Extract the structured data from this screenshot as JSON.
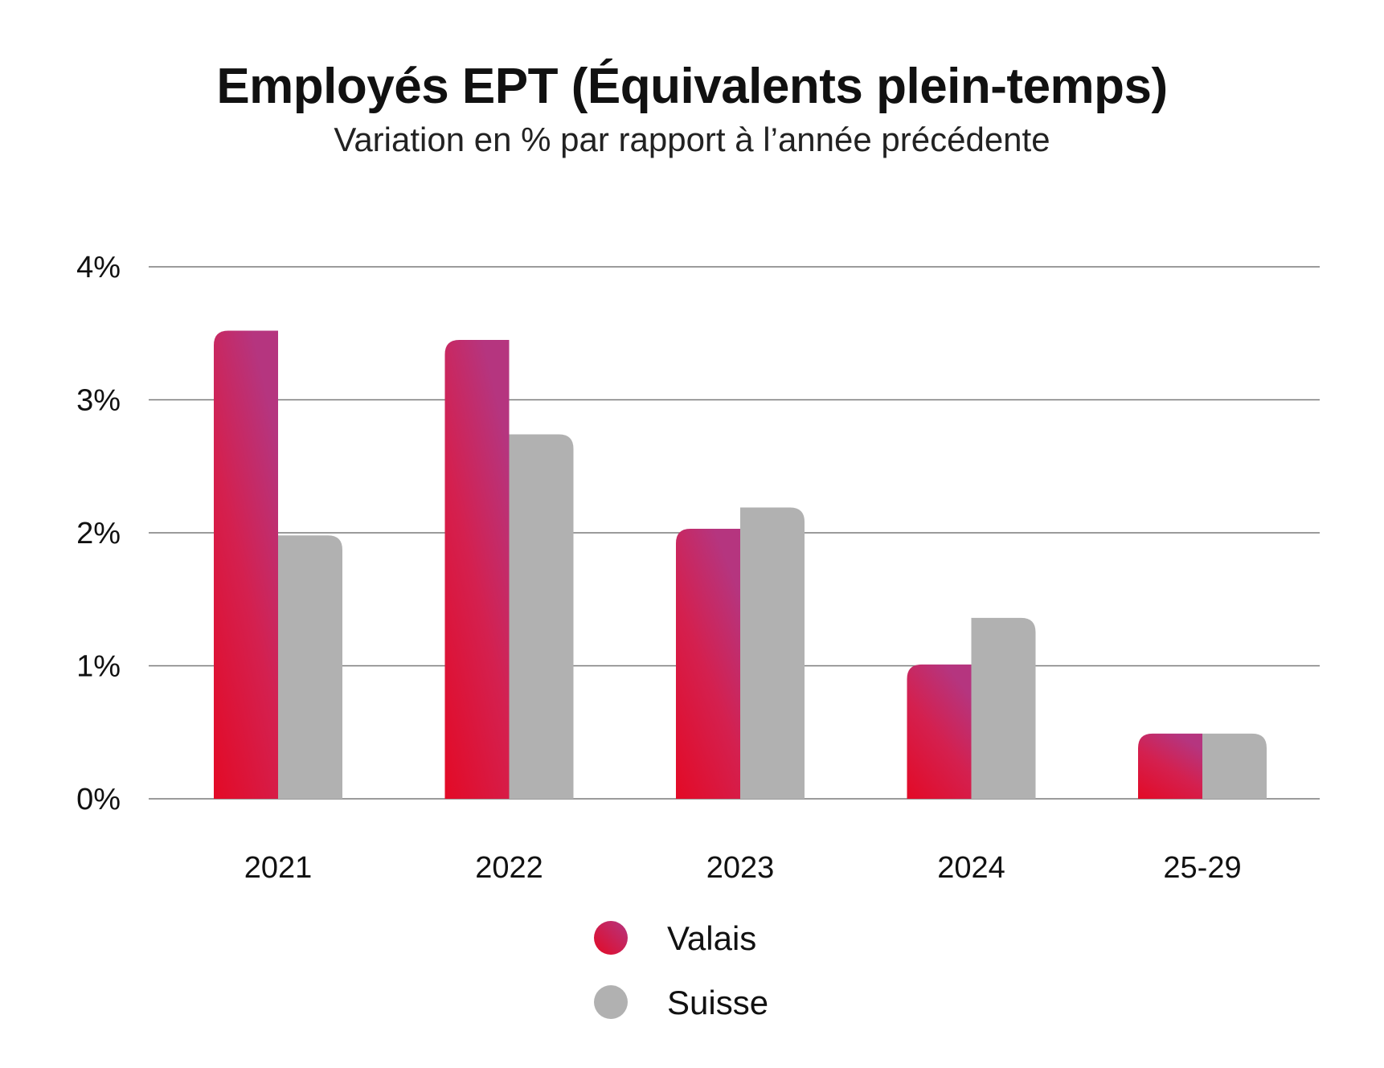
{
  "chart_data": {
    "type": "bar",
    "title": "Employés EPT (Équivalents plein-temps)",
    "subtitle": "Variation en % par rapport à l’année précédente",
    "categories": [
      "2021",
      "2022",
      "2023",
      "2024",
      "25-29"
    ],
    "series": [
      {
        "name": "Valais",
        "values": [
          3.52,
          3.45,
          2.03,
          1.01,
          0.49
        ],
        "color": "#e20a26",
        "color_top": "#b5357f"
      },
      {
        "name": "Suisse",
        "values": [
          1.98,
          2.74,
          2.19,
          1.36,
          0.49
        ],
        "color": "#b1b1b1"
      }
    ],
    "yticks": [
      0,
      1,
      2,
      3,
      4
    ],
    "ytick_labels": [
      "0%",
      "1%",
      "2%",
      "3%",
      "4%"
    ],
    "ylim": [
      0,
      4
    ],
    "grid": true,
    "legend_position": "bottom-center"
  }
}
